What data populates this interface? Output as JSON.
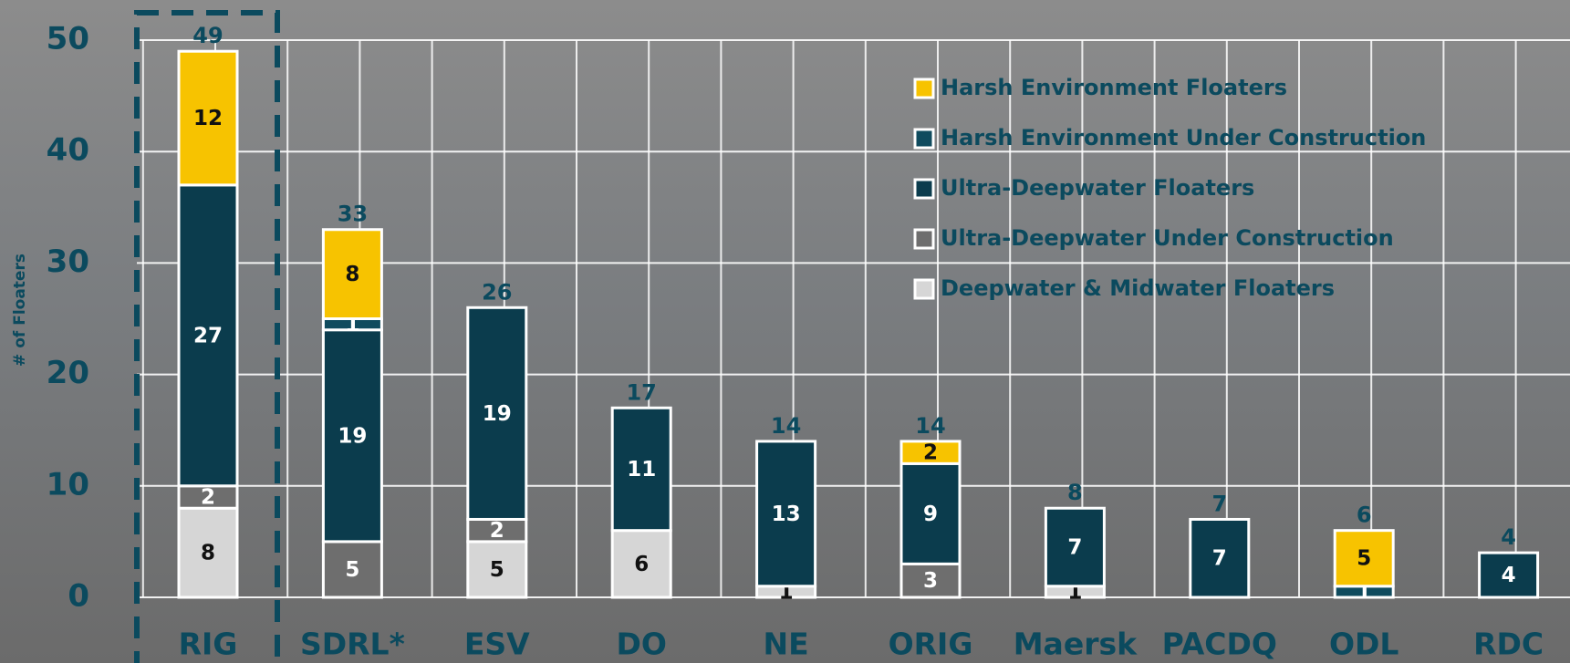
{
  "chart_data": {
    "type": "stacked_bar",
    "y_label": "# of Floaters",
    "categories": [
      "RIG",
      "SDRL*",
      "ESV",
      "DO",
      "NE",
      "ORIG",
      "Maersk",
      "PACDQ",
      "ODL",
      "RDC"
    ],
    "series": [
      {
        "name": "Harsh Environment Floaters",
        "color": "#f7c300",
        "values": [
          12,
          8,
          0,
          0,
          0,
          2,
          0,
          0,
          5,
          0
        ]
      },
      {
        "name": "Harsh Environment Under Construction",
        "color": "#0f4b5e",
        "values": [
          0,
          1,
          0,
          0,
          0,
          0,
          0,
          0,
          1,
          0
        ]
      },
      {
        "name": "Ultra-Deepwater Floaters",
        "color": "#0b3c4d",
        "values": [
          27,
          19,
          19,
          11,
          13,
          9,
          7,
          7,
          0,
          4
        ]
      },
      {
        "name": "Ultra-Deepwater Under Construction",
        "color": "#6e6e6e",
        "values": [
          2,
          5,
          2,
          0,
          0,
          3,
          0,
          0,
          0,
          0
        ]
      },
      {
        "name": "Deepwater & Midwater Floaters",
        "color": "#d6d6d6",
        "values": [
          8,
          0,
          5,
          6,
          1,
          0,
          1,
          0,
          0,
          0
        ]
      }
    ],
    "totals": [
      49,
      33,
      26,
      17,
      14,
      14,
      8,
      7,
      6,
      4
    ],
    "ylim": [
      0,
      50
    ],
    "yticks": [
      0,
      10,
      20,
      30,
      40,
      50
    ],
    "grid": true,
    "legend": "upper right"
  }
}
